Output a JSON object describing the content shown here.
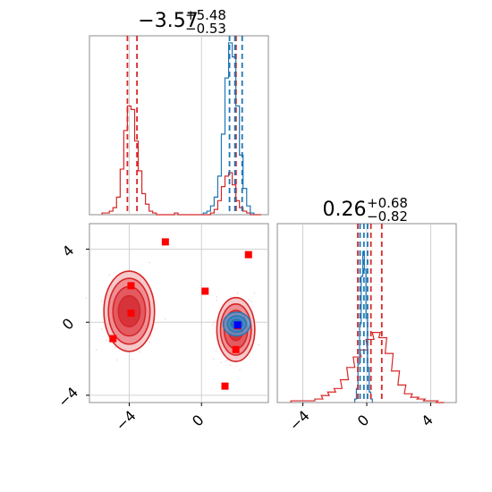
{
  "colors": {
    "red": "#d62728",
    "blue": "#1f77b4",
    "marker_red": "#ff0000",
    "marker_blue": "#0000ff",
    "grid": "#d0d0d0",
    "axes": "#8c8c8c"
  },
  "chart_data": [
    {
      "type": "histogram",
      "panel": "top-left",
      "title": {
        "value": "−3.57",
        "sup": "+5.48",
        "sub": "−0.53"
      },
      "xlim": [
        -6.2,
        3.7
      ],
      "grid": true,
      "series": [
        {
          "color": "red",
          "bins_x": [
            -5.4,
            -5.2,
            -5.0,
            -4.8,
            -4.6,
            -4.4,
            -4.2,
            -4.0,
            -3.8,
            -3.6,
            -3.4,
            -3.2,
            -3.0,
            -2.8,
            -2.6,
            -2.4,
            -2.2,
            -2.0,
            -1.8,
            -1.6,
            -1.4,
            -1.2,
            -1.0,
            -0.8,
            -0.6,
            -0.4,
            -0.2,
            0.0,
            0.2,
            0.4,
            0.6,
            0.8,
            1.0,
            1.2,
            1.4,
            1.6,
            1.8,
            2.0,
            2.2,
            2.4,
            2.6,
            2.8,
            3.0,
            3.2
          ],
          "counts": [
            0.01,
            0.01,
            0.02,
            0.04,
            0.1,
            0.26,
            0.48,
            0.62,
            0.6,
            0.42,
            0.25,
            0.12,
            0.06,
            0.02,
            0.01,
            0,
            0,
            0,
            0,
            0,
            0.01,
            0,
            0,
            0,
            0,
            0,
            0,
            0,
            0,
            0,
            0.01,
            0.03,
            0.08,
            0.16,
            0.22,
            0.24,
            0.17,
            0.08,
            0.04,
            0.02,
            0.01,
            0,
            0,
            0
          ],
          "quantiles": [
            -4.1,
            -3.57,
            1.91
          ]
        },
        {
          "color": "blue",
          "bins_x": [
            0.2,
            0.4,
            0.6,
            0.8,
            1.0,
            1.2,
            1.4,
            1.6,
            1.8,
            2.0,
            2.2,
            2.4,
            2.6,
            2.8
          ],
          "counts": [
            0.01,
            0.02,
            0.05,
            0.1,
            0.22,
            0.46,
            0.78,
            0.98,
            0.9,
            0.62,
            0.34,
            0.15,
            0.05,
            0.01
          ],
          "quantiles": [
            1.55,
            1.85,
            2.25
          ]
        }
      ]
    },
    {
      "type": "histogram",
      "panel": "bottom-right",
      "title": {
        "value": "0.26",
        "sup": "+0.68",
        "sub": "−0.82"
      },
      "xlim": [
        -5.6,
        5.6
      ],
      "xticks": [
        -4,
        0,
        4
      ],
      "grid": true,
      "series": [
        {
          "color": "red",
          "bins_x": [
            -4.5,
            -4.0,
            -3.5,
            -3.0,
            -2.6,
            -2.2,
            -1.8,
            -1.4,
            -1.0,
            -0.6,
            -0.2,
            0.2,
            0.6,
            1.0,
            1.4,
            1.8,
            2.2,
            2.6,
            3.0,
            3.4,
            3.8,
            4.2,
            4.6
          ],
          "counts": [
            0.01,
            0.01,
            0.01,
            0.02,
            0.04,
            0.06,
            0.08,
            0.13,
            0.2,
            0.26,
            0.3,
            0.36,
            0.4,
            0.37,
            0.28,
            0.18,
            0.1,
            0.05,
            0.03,
            0.02,
            0.01,
            0.01,
            0
          ],
          "quantiles": [
            -0.56,
            0.26,
            0.94
          ]
        },
        {
          "color": "blue",
          "bins_x": [
            -0.7,
            -0.6,
            -0.5,
            -0.4,
            -0.3,
            -0.2,
            -0.1,
            0.0,
            0.1,
            0.2,
            0.3
          ],
          "counts": [
            0.02,
            0.08,
            0.22,
            0.45,
            0.72,
            0.86,
            0.76,
            0.48,
            0.2,
            0.06,
            0.02
          ],
          "quantiles": [
            -0.42,
            -0.18,
            0.05
          ]
        }
      ]
    },
    {
      "type": "scatter",
      "panel": "bottom-left",
      "xlim": [
        -6.2,
        3.7
      ],
      "ylim": [
        -4.4,
        5.4
      ],
      "xticks": [
        -4,
        0
      ],
      "yticks": [
        4,
        0,
        -4
      ],
      "grid": true,
      "red_contours": [
        {
          "cx": -4.0,
          "cy": 0.6,
          "rx": [
            1.4,
            1.15,
            0.9,
            0.6
          ],
          "ry": [
            2.2,
            1.8,
            1.35,
            0.85
          ]
        },
        {
          "cx": 1.9,
          "cy": -0.4,
          "rx": [
            1.05,
            0.85,
            0.65,
            0.4
          ],
          "ry": [
            1.75,
            1.4,
            1.05,
            0.6
          ]
        }
      ],
      "blue_contours": [
        {
          "cx": 1.95,
          "cy": -0.1,
          "rx": [
            0.75,
            0.52,
            0.32
          ],
          "ry": [
            0.65,
            0.45,
            0.25
          ]
        }
      ],
      "red_markers": [
        {
          "x": -2.0,
          "y": 4.4
        },
        {
          "x": 2.6,
          "y": 3.7
        },
        {
          "x": -3.9,
          "y": 2.0
        },
        {
          "x": 0.2,
          "y": 1.7
        },
        {
          "x": -3.9,
          "y": 0.5
        },
        {
          "x": -4.9,
          "y": -0.9
        },
        {
          "x": 1.9,
          "y": -1.5
        },
        {
          "x": 1.3,
          "y": -3.5
        },
        {
          "x": 2.0,
          "y": -0.2
        }
      ],
      "blue_markers": [
        {
          "x": 2.0,
          "y": -0.15
        }
      ]
    }
  ]
}
